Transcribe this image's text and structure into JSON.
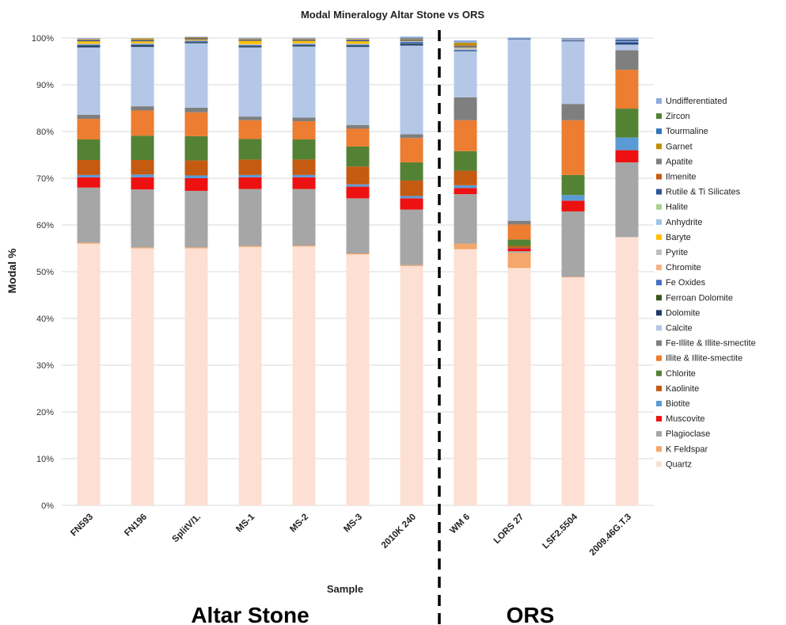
{
  "chart_data": {
    "type": "bar",
    "stacked": true,
    "title": "Modal Mineralogy Altar Stone vs ORS",
    "xlabel": "Sample",
    "ylabel": "Modal %",
    "ylim": [
      0,
      100
    ],
    "y_ticks": [
      "0%",
      "10%",
      "20%",
      "30%",
      "40%",
      "50%",
      "60%",
      "70%",
      "80%",
      "90%",
      "100%"
    ],
    "grid": true,
    "legend_position": "right",
    "categories": [
      "FN593",
      "FN196",
      "SplitV/1.",
      "MS-1",
      "MS-2",
      "MS-3",
      "2010K 240",
      "WM 6",
      "LORS 27",
      "LSF2.5504",
      "2009.46G.T.3"
    ],
    "group_labels": [
      "Altar Stone",
      "ORS"
    ],
    "group_divider_after_index": 6,
    "series": [
      {
        "name": "Quartz",
        "color": "#fde0d3",
        "values": [
          56,
          55,
          55,
          55.3,
          55.4,
          53.7,
          51.2,
          54.8,
          50.8,
          48.8,
          57.4
        ]
      },
      {
        "name": "K Feldspar",
        "color": "#f5a66a",
        "values": [
          0.2,
          0.2,
          0.2,
          0.2,
          0.2,
          0.2,
          0.2,
          1.2,
          3.3,
          0.1,
          0
        ]
      },
      {
        "name": "Plagioclase",
        "color": "#a6a6a6",
        "values": [
          11.8,
          12.4,
          12.1,
          12.2,
          12.1,
          11.8,
          11.9,
          10.6,
          0.3,
          14,
          16
        ]
      },
      {
        "name": "Muscovite",
        "color": "#ee1111",
        "values": [
          2.2,
          2.6,
          2.7,
          2.5,
          2.5,
          2.5,
          2.4,
          1.3,
          0.6,
          2.3,
          2.6
        ]
      },
      {
        "name": "Biotite",
        "color": "#5b9bd5",
        "values": [
          0.5,
          0.6,
          0.6,
          0.5,
          0.5,
          0.5,
          0.5,
          0.6,
          0.1,
          1.2,
          2.7
        ]
      },
      {
        "name": "Kaolinite",
        "color": "#c55a11",
        "values": [
          3.2,
          3.1,
          3.2,
          3.3,
          3.3,
          3.8,
          3.3,
          3.1,
          0.4,
          0,
          0
        ]
      },
      {
        "name": "Chlorite",
        "color": "#548235",
        "values": [
          4.4,
          5.2,
          5.2,
          4.4,
          4.3,
          4.3,
          3.9,
          4.2,
          1.4,
          4.3,
          6.2
        ]
      },
      {
        "name": "Illite & Illite-smectite",
        "color": "#ed7d31",
        "values": [
          4.4,
          5.4,
          5.1,
          4,
          3.9,
          3.8,
          5.2,
          6.6,
          3.2,
          11.7,
          8.3
        ]
      },
      {
        "name": "Fe-Illite & Illite-smectite",
        "color": "#7f7f7f",
        "values": [
          0.9,
          0.9,
          1,
          0.8,
          0.8,
          0.8,
          0.8,
          4.9,
          0.8,
          3.5,
          4.2
        ]
      },
      {
        "name": "Calcite",
        "color": "#b4c7e7",
        "values": [
          14.4,
          12.7,
          13.8,
          14.8,
          15.2,
          16.7,
          19,
          9.9,
          38.8,
          13.4,
          1.2
        ]
      },
      {
        "name": "Dolomite",
        "color": "#1f3864",
        "values": [
          0.3,
          0.3,
          0.2,
          0.2,
          0.2,
          0.2,
          0.3,
          0.1,
          0.1,
          0.1,
          0.3
        ]
      },
      {
        "name": "Ferroan Dolomite",
        "color": "#375623",
        "values": [
          0.1,
          0.1,
          0.1,
          0.1,
          0.1,
          0.1,
          0.1,
          0,
          0,
          0,
          0
        ]
      },
      {
        "name": "Fe Oxides",
        "color": "#4472c4",
        "values": [
          0.2,
          0.2,
          0.2,
          0.2,
          0.2,
          0.2,
          0.4,
          0.2,
          0.1,
          0.1,
          0.3
        ]
      },
      {
        "name": "Chromite",
        "color": "#f4b183",
        "values": [
          0,
          0,
          0,
          0,
          0,
          0,
          0,
          0,
          0,
          0,
          0
        ]
      },
      {
        "name": "Pyrite",
        "color": "#bfbfbf",
        "values": [
          0.2,
          0.2,
          0.1,
          0.2,
          0.2,
          0.2,
          0.1,
          0.4,
          0,
          0.2,
          0.1
        ]
      },
      {
        "name": "Baryte",
        "color": "#ffc000",
        "values": [
          0.5,
          0.4,
          0.2,
          0.7,
          0.5,
          0.5,
          0.1,
          0.1,
          0,
          0,
          0
        ]
      },
      {
        "name": "Anhydrite",
        "color": "#9dc3e6",
        "values": [
          0,
          0,
          0,
          0,
          0,
          0,
          0,
          0,
          0,
          0,
          0
        ]
      },
      {
        "name": "Halite",
        "color": "#a9d18e",
        "values": [
          0,
          0,
          0,
          0,
          0,
          0,
          0,
          0,
          0,
          0,
          0
        ]
      },
      {
        "name": "Rutile & Ti Silicates",
        "color": "#2f5597",
        "values": [
          0.2,
          0.2,
          0.2,
          0.2,
          0.2,
          0.2,
          0.2,
          0.2,
          0,
          0.1,
          0.3
        ]
      },
      {
        "name": "Ilmenite",
        "color": "#c55a11",
        "values": [
          0.1,
          0.1,
          0.1,
          0.1,
          0.1,
          0.1,
          0.1,
          0.1,
          0,
          0,
          0
        ]
      },
      {
        "name": "Apatite",
        "color": "#7f7f7f",
        "values": [
          0.1,
          0.1,
          0.1,
          0.1,
          0.1,
          0.1,
          0.1,
          0.1,
          0,
          0,
          0.1
        ]
      },
      {
        "name": "Garnet",
        "color": "#bf9000",
        "values": [
          0.1,
          0.2,
          0.1,
          0.1,
          0.1,
          0.1,
          0.1,
          0.6,
          0,
          0,
          0
        ]
      },
      {
        "name": "Tourmaline",
        "color": "#2e75b6",
        "values": [
          0,
          0,
          0,
          0,
          0,
          0,
          0.1,
          0,
          0,
          0,
          0
        ]
      },
      {
        "name": "Zircon",
        "color": "#548235",
        "values": [
          0,
          0,
          0,
          0,
          0,
          0,
          0,
          0,
          0,
          0,
          0
        ]
      },
      {
        "name": "Undifferentiated",
        "color": "#8faadc",
        "values": [
          0.2,
          0.1,
          0.1,
          0.2,
          0.2,
          0.2,
          0.3,
          0.5,
          0.2,
          0.2,
          0.4
        ]
      }
    ]
  }
}
